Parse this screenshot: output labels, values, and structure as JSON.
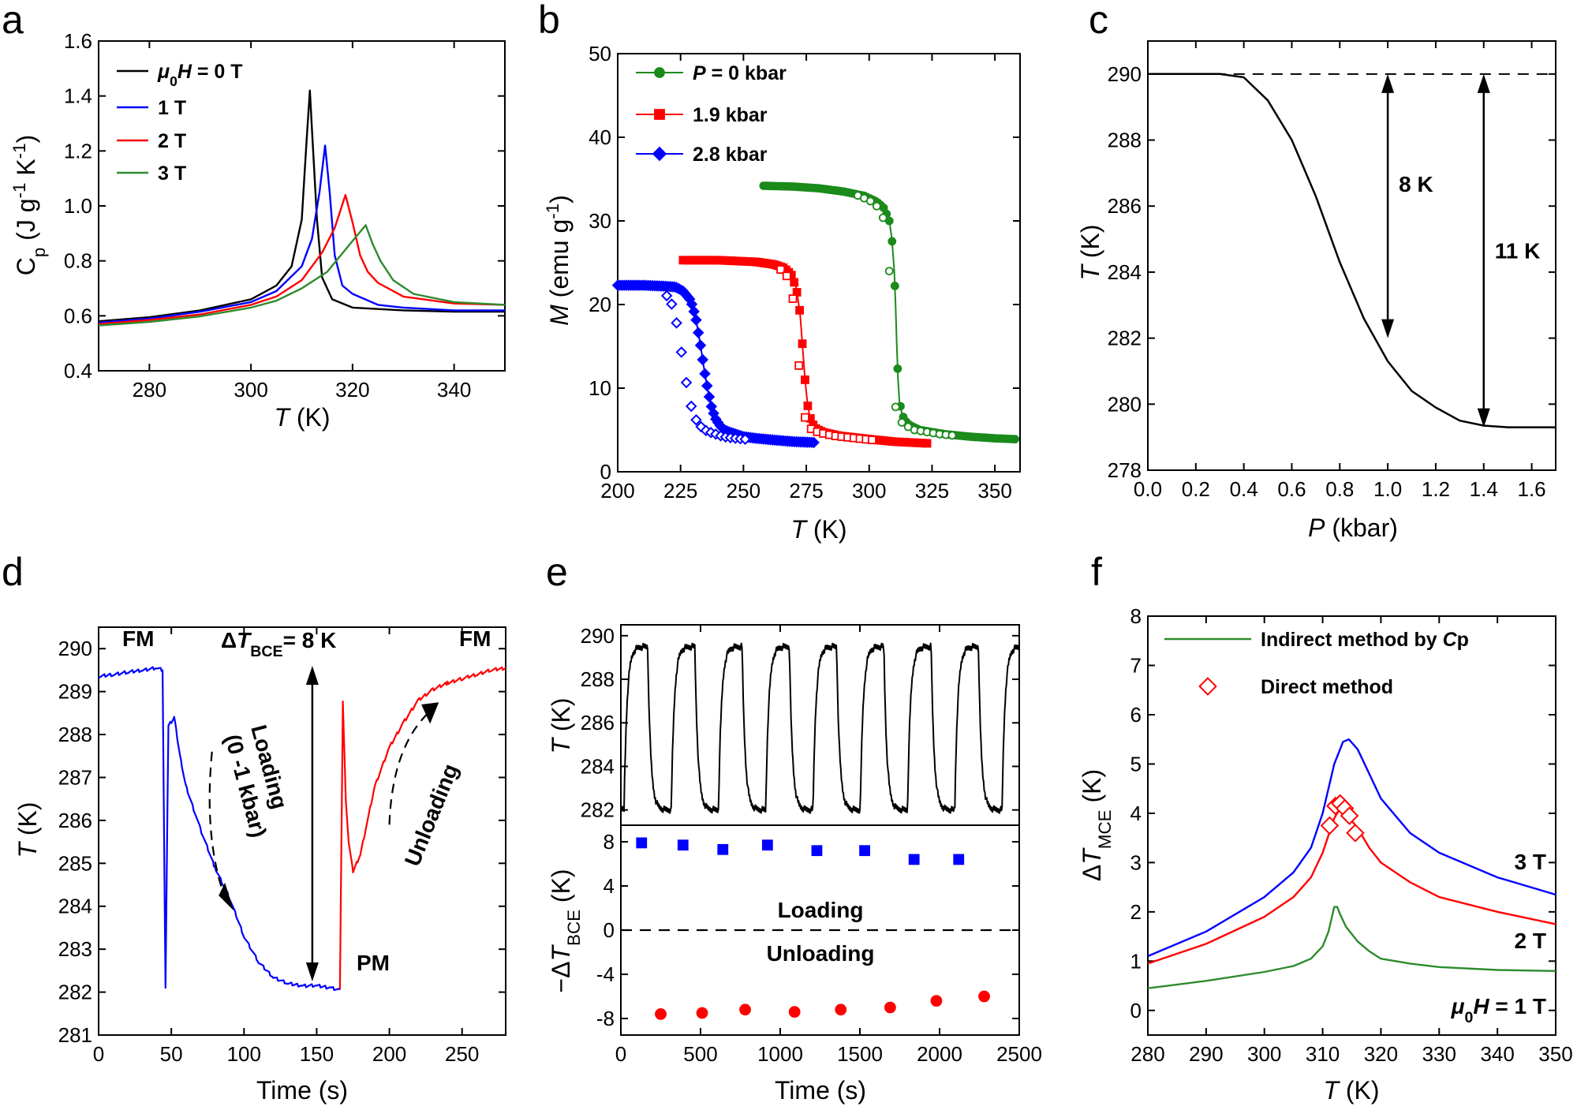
{
  "chart_data": [
    {
      "panel": "a",
      "type": "line",
      "xlim": [
        270,
        350
      ],
      "ylim": [
        0.4,
        1.6
      ],
      "xticks": [
        280,
        300,
        320,
        340
      ],
      "yticks": [
        0.4,
        0.6,
        0.8,
        1.0,
        1.2,
        1.4,
        1.6
      ],
      "xlabel": "T (K)",
      "ylabel": "Cp (J g-1 K-1)",
      "legend": "top-left",
      "series": [
        {
          "name": "μ0H = 0 T",
          "color": "#000000",
          "x": [
            270,
            280,
            290,
            300,
            305,
            308,
            310,
            311,
            311.6,
            312,
            313,
            314,
            316,
            320,
            330,
            340,
            350
          ],
          "y": [
            0.58,
            0.595,
            0.62,
            0.66,
            0.71,
            0.78,
            0.95,
            1.25,
            1.42,
            1.28,
            0.95,
            0.74,
            0.66,
            0.63,
            0.62,
            0.615,
            0.615
          ]
        },
        {
          "name": "1 T",
          "color": "#0000ff",
          "x": [
            270,
            280,
            290,
            300,
            305,
            310,
            312,
            313.5,
            314.6,
            315.5,
            316.5,
            318,
            320,
            325,
            330,
            340,
            350
          ],
          "y": [
            0.575,
            0.59,
            0.615,
            0.65,
            0.69,
            0.78,
            0.88,
            1.05,
            1.22,
            1.05,
            0.82,
            0.71,
            0.68,
            0.64,
            0.63,
            0.62,
            0.62
          ]
        },
        {
          "name": "2 T",
          "color": "#ff0000",
          "x": [
            270,
            280,
            290,
            300,
            305,
            310,
            314,
            316.5,
            318.6,
            320,
            321.5,
            323,
            325,
            330,
            340,
            350
          ],
          "y": [
            0.57,
            0.585,
            0.605,
            0.64,
            0.67,
            0.73,
            0.83,
            0.92,
            1.04,
            0.94,
            0.82,
            0.76,
            0.72,
            0.67,
            0.645,
            0.64
          ]
        },
        {
          "name": "3 T",
          "color": "#2e8b2e",
          "x": [
            270,
            280,
            290,
            300,
            305,
            310,
            315,
            319,
            322.6,
            324,
            325.5,
            328,
            332,
            340,
            350
          ],
          "y": [
            0.565,
            0.578,
            0.598,
            0.63,
            0.655,
            0.7,
            0.76,
            0.85,
            0.93,
            0.86,
            0.8,
            0.73,
            0.68,
            0.65,
            0.64
          ]
        }
      ]
    },
    {
      "panel": "b",
      "type": "scatter",
      "xlim": [
        200,
        360
      ],
      "ylim": [
        0,
        50
      ],
      "xticks": [
        200,
        225,
        250,
        275,
        300,
        325,
        350
      ],
      "yticks": [
        0,
        10,
        20,
        30,
        40,
        50
      ],
      "xlabel": "T (K)",
      "ylabel": "M (emu g-1)",
      "legend": "top-left",
      "series": [
        {
          "name": "P = 0 kbar",
          "color": "#1a8a1a",
          "marker": "circle",
          "x": [
            258,
            270,
            280,
            290,
            298,
            303,
            306,
            308,
            309,
            310,
            310.5,
            311,
            311.5,
            312,
            313,
            314,
            316,
            320,
            330,
            340,
            350,
            358
          ],
          "y": [
            34.2,
            34.1,
            33.9,
            33.5,
            33,
            32.3,
            31.5,
            30,
            28,
            24,
            20,
            15,
            11,
            8.5,
            7,
            6.2,
            5.6,
            5,
            4.5,
            4.2,
            4,
            3.9
          ]
        },
        {
          "name": "1.9 kbar",
          "color": "#ff0000",
          "marker": "square",
          "x": [
            226,
            240,
            255,
            262,
            266,
            269,
            271,
            272.5,
            273.5,
            274.5,
            275.5,
            276.5,
            277.5,
            279,
            282,
            288,
            300,
            310,
            323
          ],
          "y": [
            25.3,
            25.3,
            25.1,
            24.8,
            24.4,
            23.6,
            22,
            19,
            15,
            11,
            8,
            6.5,
            5.7,
            5.1,
            4.7,
            4.3,
            3.9,
            3.6,
            3.4
          ]
        },
        {
          "name": "2.8 kbar",
          "color": "#0000ff",
          "marker": "diamond",
          "x": [
            200,
            210,
            218,
            223,
            226,
            229,
            231,
            233,
            234.5,
            236,
            237.5,
            239,
            240.5,
            242,
            244,
            247,
            250,
            255,
            262,
            270,
            278
          ],
          "y": [
            22.3,
            22.3,
            22.2,
            22.1,
            21.6,
            20.5,
            18.5,
            15,
            12,
            9.5,
            7.5,
            6.3,
            5.6,
            5.1,
            4.8,
            4.5,
            4.2,
            4,
            3.8,
            3.6,
            3.5
          ]
        }
      ]
    },
    {
      "panel": "c",
      "type": "line",
      "xlim": [
        0,
        1.7
      ],
      "ylim": [
        278,
        291
      ],
      "xticks": [
        0.0,
        0.2,
        0.4,
        0.6,
        0.8,
        1.0,
        1.2,
        1.4,
        1.6
      ],
      "yticks": [
        278,
        280,
        282,
        284,
        286,
        288,
        290
      ],
      "xlabel": "P (kbar)",
      "ylabel": "T (K)",
      "series": [
        {
          "name": "",
          "color": "#000000",
          "x": [
            0,
            0.3,
            0.4,
            0.5,
            0.6,
            0.7,
            0.8,
            0.9,
            1.0,
            1.1,
            1.2,
            1.3,
            1.4,
            1.5,
            1.6,
            1.7
          ],
          "y": [
            290,
            290,
            289.9,
            289.2,
            288,
            286.3,
            284.3,
            282.6,
            281.3,
            280.4,
            279.9,
            279.5,
            279.35,
            279.3,
            279.3,
            279.3
          ]
        }
      ],
      "reference_line": 290,
      "arrows": [
        {
          "x": 1.0,
          "from": 290,
          "to": 282,
          "label": "8 K"
        },
        {
          "x": 1.4,
          "from": 290,
          "to": 279.3,
          "label": "11 K"
        }
      ]
    },
    {
      "panel": "d",
      "type": "line",
      "xlim": [
        0,
        280
      ],
      "ylim": [
        281,
        290.5
      ],
      "xticks": [
        0,
        50,
        100,
        150,
        200,
        250
      ],
      "yticks": [
        281,
        282,
        283,
        284,
        285,
        286,
        287,
        288,
        289,
        290
      ],
      "xlabel": "Time (s)",
      "ylabel": "T (K)",
      "series": [
        {
          "name": "Loading",
          "color": "#0000ff",
          "x": [
            0,
            10,
            20,
            30,
            40,
            44,
            46,
            48,
            52,
            56,
            60,
            70,
            80,
            90,
            100,
            110,
            120,
            130,
            140,
            150,
            160,
            166
          ],
          "y": [
            289.35,
            289.4,
            289.45,
            289.5,
            289.55,
            289.5,
            282.1,
            288.2,
            288.4,
            287.5,
            286.8,
            285.8,
            284.9,
            284.2,
            283.3,
            282.7,
            282.35,
            282.2,
            282.15,
            282.15,
            282.1,
            282.05
          ]
        },
        {
          "name": "Unloading",
          "color": "#ff0000",
          "x": [
            166,
            168,
            170,
            172,
            175,
            180,
            185,
            190,
            200,
            210,
            220,
            230,
            240,
            250,
            260,
            270,
            280
          ],
          "y": [
            282.1,
            288.8,
            286.5,
            285.5,
            284.8,
            285.2,
            286,
            286.8,
            287.7,
            288.3,
            288.8,
            289.05,
            289.2,
            289.3,
            289.4,
            289.5,
            289.55
          ]
        }
      ],
      "labels": [
        "FM",
        "FM",
        "PM",
        "ΔTBCE= 8 K",
        "Loading",
        "(0 -1 kbar)",
        "Unloading"
      ]
    },
    {
      "panel": "e",
      "type": "line+scatter",
      "xlim": [
        0,
        2500
      ],
      "top": {
        "ylim": [
          281.3,
          290.5
        ],
        "yticks": [
          282,
          284,
          286,
          288,
          290
        ],
        "ylabel": "T (K)",
        "color": "#000000",
        "cycle_period": 296.5,
        "cycle_start": 20,
        "t_high": 289.5,
        "t_low": 282
      },
      "bottom": {
        "ylim": [
          -9.5,
          9.5
        ],
        "yticks": [
          -8,
          -4,
          0,
          4,
          8
        ],
        "ylabel": "−ΔTBCE (K)",
        "loading": {
          "color": "#0000ff",
          "x": [
            130,
            390,
            640,
            920,
            1230,
            1530,
            1840,
            2120
          ],
          "y": [
            7.9,
            7.7,
            7.3,
            7.7,
            7.2,
            7.2,
            6.4,
            6.4
          ]
        },
        "unloading": {
          "color": "#ff0000",
          "x": [
            250,
            510,
            780,
            1090,
            1380,
            1690,
            1980,
            2280
          ],
          "y": [
            -7.6,
            -7.5,
            -7.2,
            -7.4,
            -7.2,
            -7.0,
            -6.4,
            -6.0
          ]
        },
        "labels": [
          "Loading",
          "Unloading"
        ]
      },
      "xticks": [
        0,
        500,
        1000,
        1500,
        2000,
        2500
      ],
      "xlabel": "Time (s)"
    },
    {
      "panel": "f",
      "type": "line+scatter",
      "xlim": [
        280,
        350
      ],
      "ylim": [
        -0.5,
        8
      ],
      "xticks": [
        280,
        290,
        300,
        310,
        320,
        330,
        340,
        350
      ],
      "yticks": [
        0,
        1,
        2,
        3,
        4,
        5,
        6,
        7,
        8
      ],
      "xlabel": "T (K)",
      "ylabel": "ΔTMCE (K)",
      "legend": "top-left",
      "series": [
        {
          "name": "3 T",
          "color": "#0000ff",
          "x": [
            280,
            290,
            300,
            305,
            308,
            310,
            312,
            313.5,
            314.5,
            316,
            318,
            320,
            325,
            330,
            340,
            350
          ],
          "y": [
            1.1,
            1.6,
            2.3,
            2.8,
            3.3,
            4.0,
            5.0,
            5.45,
            5.5,
            5.3,
            4.8,
            4.3,
            3.6,
            3.2,
            2.7,
            2.35
          ]
        },
        {
          "name": "2 T",
          "color": "#ff0000",
          "x": [
            280,
            290,
            300,
            305,
            308,
            310,
            312,
            313,
            314,
            316,
            318,
            320,
            325,
            330,
            340,
            350
          ],
          "y": [
            0.95,
            1.35,
            1.9,
            2.3,
            2.7,
            3.2,
            3.9,
            4.1,
            4.0,
            3.7,
            3.3,
            3.0,
            2.6,
            2.3,
            2.0,
            1.75
          ]
        },
        {
          "name": "Indirect method by Cp",
          "label_on_plot": "μ0H = 1 T",
          "color": "#2e8b2e",
          "x": [
            280,
            290,
            300,
            305,
            308,
            310,
            311,
            312,
            312.5,
            313,
            314,
            316,
            318,
            320,
            325,
            330,
            340,
            350
          ],
          "y": [
            0.45,
            0.6,
            0.78,
            0.9,
            1.05,
            1.3,
            1.6,
            2.1,
            2.1,
            1.95,
            1.7,
            1.4,
            1.2,
            1.05,
            0.95,
            0.88,
            0.82,
            0.8
          ]
        }
      ],
      "direct_method": {
        "name": "Direct method",
        "color": "#ff0000",
        "marker": "diamond-open",
        "x": [
          311.2,
          312.2,
          313,
          313.8,
          314.6,
          315.6
        ],
        "y": [
          3.75,
          4.15,
          4.2,
          4.1,
          3.95,
          3.6
        ]
      }
    }
  ]
}
